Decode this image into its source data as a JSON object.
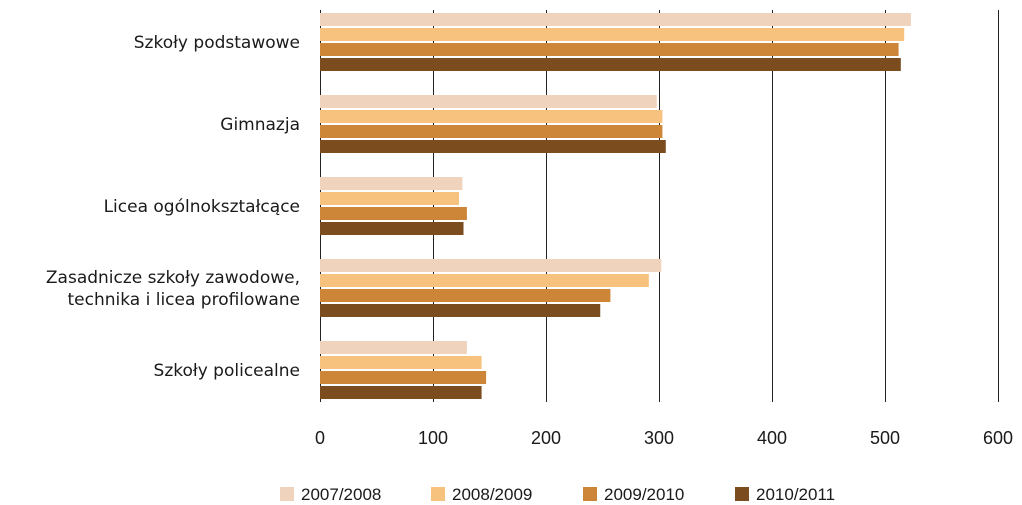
{
  "chart_data": {
    "type": "bar",
    "orientation": "horizontal",
    "categories": [
      [
        "Szkoły podstawowe"
      ],
      [
        "Gimnazja"
      ],
      [
        "Licea ogólnokształcące"
      ],
      [
        "Zasadnicze szkoły zawodowe,",
        "technika i licea profilowane"
      ],
      [
        "Szkoły policealne"
      ]
    ],
    "series": [
      {
        "name": "2007/2008",
        "color": "#f0d3bd",
        "values": [
          523,
          298,
          126,
          302,
          130
        ]
      },
      {
        "name": "2008/2009",
        "color": "#f7c27e",
        "values": [
          517,
          303,
          123,
          291,
          143
        ]
      },
      {
        "name": "2009/2010",
        "color": "#cd8537",
        "values": [
          512,
          303,
          130,
          257,
          147
        ]
      },
      {
        "name": "2010/2011",
        "color": "#7b4c1e",
        "values": [
          514,
          306,
          127,
          248,
          143
        ]
      }
    ],
    "xlim": [
      0,
      600
    ],
    "xticks": [
      0,
      100,
      200,
      300,
      400,
      500,
      600
    ],
    "grid": true,
    "legend_position": "bottom"
  }
}
